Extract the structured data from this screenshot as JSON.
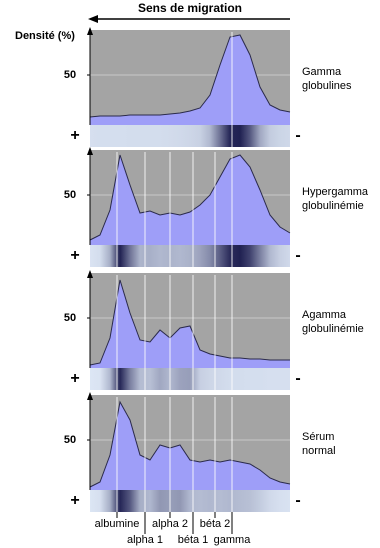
{
  "header": {
    "title": "Sens de migration",
    "y_label": "Densité (%)",
    "anode": "+",
    "cathode": "-"
  },
  "chart_data": [
    {
      "type": "area",
      "label": [
        "Gamma",
        "globulines"
      ],
      "color": "#9e9ef8",
      "ylim": [
        0,
        95
      ],
      "yticks": [
        50
      ],
      "xlim": [
        0,
        100
      ],
      "x": [
        0,
        5,
        10,
        15,
        20,
        25,
        30,
        35,
        40,
        45,
        50,
        55,
        60,
        65,
        70,
        75,
        80,
        85,
        90,
        95,
        100
      ],
      "values": [
        8,
        9,
        9,
        9,
        10,
        10,
        10,
        10,
        11,
        12,
        14,
        17,
        30,
        60,
        88,
        90,
        70,
        38,
        20,
        15,
        13
      ]
    },
    {
      "type": "area",
      "label": [
        "Hypergamma",
        "globulinémie"
      ],
      "color": "#9e9ef8",
      "ylim": [
        0,
        95
      ],
      "yticks": [
        50
      ],
      "xlim": [
        0,
        100
      ],
      "x": [
        0,
        5,
        10,
        15,
        20,
        25,
        30,
        35,
        40,
        45,
        50,
        55,
        60,
        65,
        70,
        75,
        80,
        85,
        90,
        95,
        100
      ],
      "values": [
        5,
        10,
        35,
        90,
        60,
        32,
        34,
        30,
        32,
        30,
        33,
        40,
        50,
        68,
        86,
        90,
        78,
        55,
        30,
        18,
        12
      ]
    },
    {
      "type": "area",
      "label": [
        "Agamma",
        "globulinémie"
      ],
      "color": "#9e9ef8",
      "ylim": [
        0,
        95
      ],
      "yticks": [
        50
      ],
      "xlim": [
        0,
        100
      ],
      "x": [
        0,
        5,
        10,
        15,
        20,
        25,
        30,
        35,
        40,
        45,
        50,
        55,
        60,
        65,
        70,
        75,
        80,
        85,
        90,
        95,
        100
      ],
      "values": [
        3,
        5,
        30,
        88,
        55,
        28,
        26,
        38,
        30,
        40,
        42,
        18,
        14,
        12,
        10,
        10,
        9,
        9,
        8,
        8,
        8
      ]
    },
    {
      "type": "area",
      "label": [
        "Sérum",
        "normal"
      ],
      "color": "#9e9ef8",
      "ylim": [
        0,
        95
      ],
      "yticks": [
        50
      ],
      "xlim": [
        0,
        100
      ],
      "x": [
        0,
        5,
        10,
        15,
        20,
        25,
        30,
        35,
        40,
        45,
        50,
        55,
        60,
        65,
        70,
        75,
        80,
        85,
        90,
        95,
        100
      ],
      "values": [
        3,
        8,
        35,
        88,
        70,
        35,
        30,
        45,
        42,
        45,
        30,
        28,
        30,
        28,
        30,
        28,
        26,
        20,
        12,
        8,
        6
      ]
    }
  ],
  "fractions": [
    {
      "name": "albumine",
      "x": 13.5
    },
    {
      "name": "alpha 1",
      "x": 27.5
    },
    {
      "name": "alpha 2",
      "x": 40
    },
    {
      "name": "béta 1",
      "x": 51.5
    },
    {
      "name": "béta 2",
      "x": 62.5
    },
    {
      "name": "gamma",
      "x": 71
    }
  ]
}
